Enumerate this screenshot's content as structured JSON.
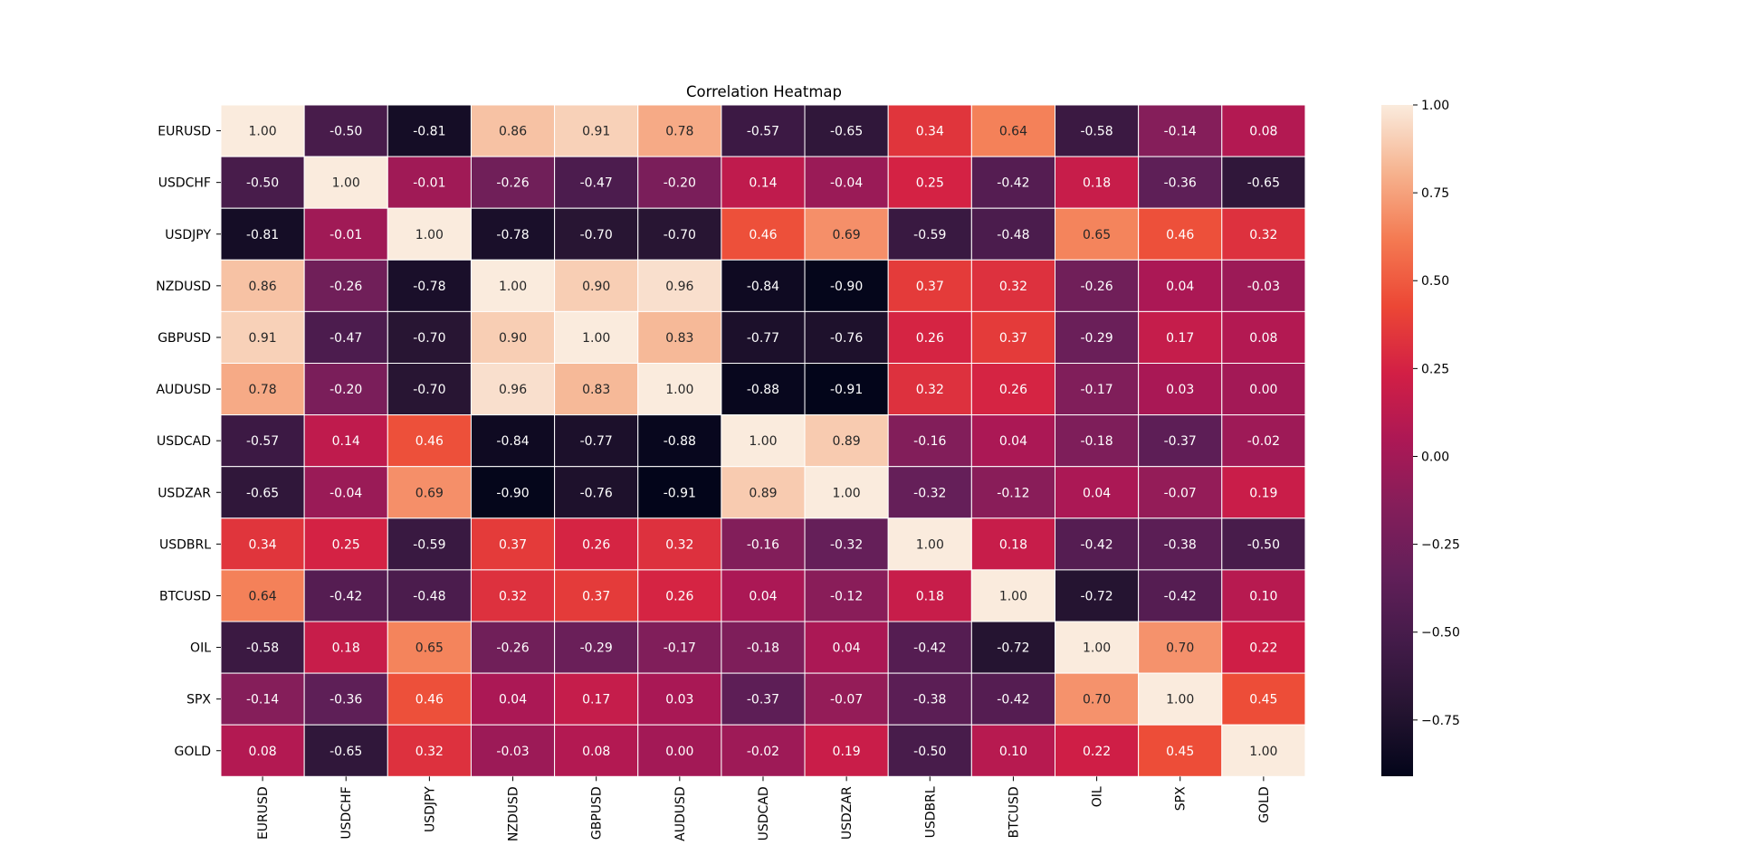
{
  "chart_data": {
    "type": "heatmap",
    "title": "Correlation Heatmap",
    "xlabel": "",
    "ylabel": "",
    "x_categories": [
      "EURUSD",
      "USDCHF",
      "USDJPY",
      "NZDUSD",
      "GBPUSD",
      "AUDUSD",
      "USDCAD",
      "USDZAR",
      "USDBRL",
      "BTCUSD",
      "OIL",
      "SPX",
      "GOLD"
    ],
    "y_categories": [
      "EURUSD",
      "USDCHF",
      "USDJPY",
      "NZDUSD",
      "GBPUSD",
      "AUDUSD",
      "USDCAD",
      "USDZAR",
      "USDBRL",
      "BTCUSD",
      "OIL",
      "SPX",
      "GOLD"
    ],
    "values": [
      [
        1.0,
        -0.5,
        -0.81,
        0.86,
        0.91,
        0.78,
        -0.57,
        -0.65,
        0.34,
        0.64,
        -0.58,
        -0.14,
        0.08
      ],
      [
        -0.5,
        1.0,
        -0.01,
        -0.26,
        -0.47,
        -0.2,
        0.14,
        -0.04,
        0.25,
        -0.42,
        0.18,
        -0.36,
        -0.65
      ],
      [
        -0.81,
        -0.01,
        1.0,
        -0.78,
        -0.7,
        -0.7,
        0.46,
        0.69,
        -0.59,
        -0.48,
        0.65,
        0.46,
        0.32
      ],
      [
        0.86,
        -0.26,
        -0.78,
        1.0,
        0.9,
        0.96,
        -0.84,
        -0.9,
        0.37,
        0.32,
        -0.26,
        0.04,
        -0.03
      ],
      [
        0.91,
        -0.47,
        -0.7,
        0.9,
        1.0,
        0.83,
        -0.77,
        -0.76,
        0.26,
        0.37,
        -0.29,
        0.17,
        0.08
      ],
      [
        0.78,
        -0.2,
        -0.7,
        0.96,
        0.83,
        1.0,
        -0.88,
        -0.91,
        0.32,
        0.26,
        -0.17,
        0.03,
        -0.0
      ],
      [
        -0.57,
        0.14,
        0.46,
        -0.84,
        -0.77,
        -0.88,
        1.0,
        0.89,
        -0.16,
        0.04,
        -0.18,
        -0.37,
        -0.02
      ],
      [
        -0.65,
        -0.04,
        0.69,
        -0.9,
        -0.76,
        -0.91,
        0.89,
        1.0,
        -0.32,
        -0.12,
        0.04,
        -0.07,
        0.19
      ],
      [
        0.34,
        0.25,
        -0.59,
        0.37,
        0.26,
        0.32,
        -0.16,
        -0.32,
        1.0,
        0.18,
        -0.42,
        -0.38,
        -0.5
      ],
      [
        0.64,
        -0.42,
        -0.48,
        0.32,
        0.37,
        0.26,
        0.04,
        -0.12,
        0.18,
        1.0,
        -0.72,
        -0.42,
        0.1
      ],
      [
        -0.58,
        0.18,
        0.65,
        -0.26,
        -0.29,
        -0.17,
        -0.18,
        0.04,
        -0.42,
        -0.72,
        1.0,
        0.7,
        0.22
      ],
      [
        -0.14,
        -0.36,
        0.46,
        0.04,
        0.17,
        0.03,
        -0.37,
        -0.07,
        -0.38,
        -0.42,
        0.7,
        1.0,
        0.45
      ],
      [
        0.08,
        -0.65,
        0.32,
        -0.03,
        0.08,
        -0.0,
        -0.02,
        0.19,
        -0.5,
        0.1,
        0.22,
        0.45,
        1.0
      ]
    ],
    "value_format": "2f",
    "colormap": "rocket",
    "vmin": -0.91,
    "vmax": 1.0,
    "colorbar_ticks": [
      1.0,
      0.75,
      0.5,
      0.25,
      0.0,
      -0.25,
      -0.5,
      -0.75
    ],
    "colorbar_tick_labels": [
      "1.00",
      "0.75",
      "0.50",
      "0.25",
      "0.00",
      "−0.25",
      "−0.50",
      "−0.75"
    ],
    "x_tick_rotation_deg": 90,
    "grid_lines_color": "#ffffff",
    "legend": "colorbar-right"
  }
}
